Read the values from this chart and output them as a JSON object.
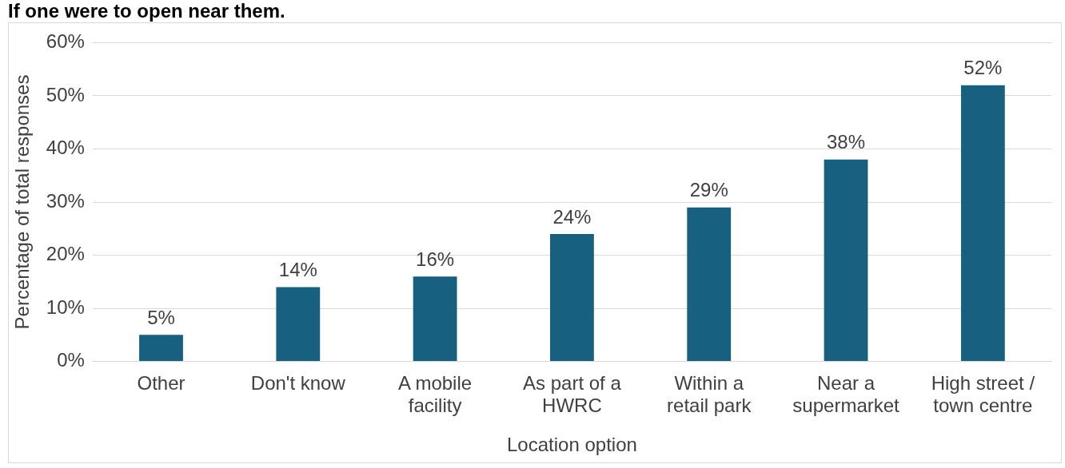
{
  "chart_data": {
    "type": "bar",
    "title": "If one were to open near them.",
    "xlabel": "Location option",
    "ylabel": "Percentage of total responses",
    "categories": [
      "Other",
      "Don't know",
      "A mobile facility",
      "As part of a HWRC",
      "Within a retail park",
      "Near a supermarket",
      "High street / town centre"
    ],
    "values": [
      5,
      14,
      16,
      24,
      29,
      38,
      52
    ],
    "color": "#17607f",
    "value_labels": [
      "5%",
      "14%",
      "16%",
      "24%",
      "29%",
      "38%",
      "52%"
    ],
    "ylim": [
      0,
      60
    ],
    "yticks": [
      {
        "value": 0,
        "label": "0%"
      },
      {
        "value": 10,
        "label": "10%"
      },
      {
        "value": 20,
        "label": "20%"
      },
      {
        "value": 30,
        "label": "30%"
      },
      {
        "value": 40,
        "label": "40%"
      },
      {
        "value": 50,
        "label": "50%"
      },
      {
        "value": 60,
        "label": "60%"
      }
    ],
    "grid": "y",
    "legend": false
  }
}
